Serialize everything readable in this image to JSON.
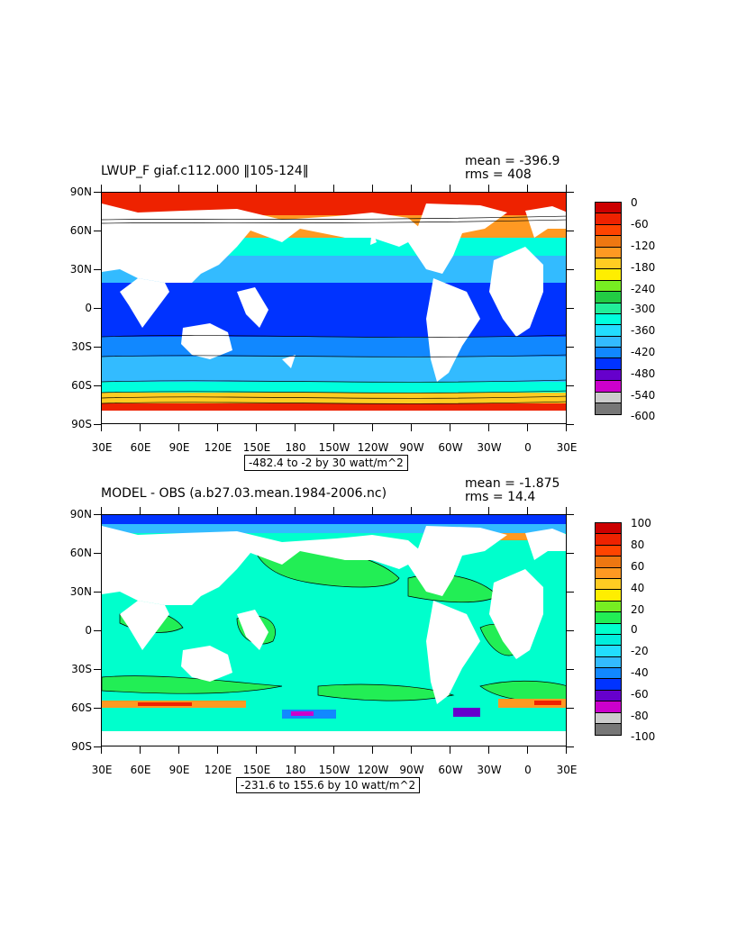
{
  "panels": [
    {
      "title": "LWUP_F giaf.c112.000 ‖105-124‖",
      "mean": "mean = -396.9",
      "rms": "rms = 408",
      "range_label": "-482.4 to -2 by 30 watt/m^2",
      "y_labels": [
        "90N",
        "60N",
        "30N",
        "0",
        "30S",
        "60S",
        "90S"
      ],
      "x_labels": [
        "30E",
        "60E",
        "90E",
        "120E",
        "150E",
        "180",
        "150W",
        "120W",
        "90W",
        "60W",
        "30W",
        "0",
        "30E"
      ],
      "colorbar_labels": [
        "0",
        "-60",
        "-120",
        "-180",
        "-240",
        "-300",
        "-360",
        "-420",
        "-480",
        "-540",
        "-600"
      ],
      "colorbar_colors": [
        "#cc0000",
        "#ee2200",
        "#ff4400",
        "#ee7711",
        "#ff9922",
        "#ffcc22",
        "#ffee00",
        "#77ee22",
        "#22cc44",
        "#22ee99",
        "#00ffdd",
        "#22ddff",
        "#33bbff",
        "#1188ff",
        "#0033ff",
        "#6600cc",
        "#cc00cc",
        "#cccccc",
        "#777777"
      ]
    },
    {
      "title": "MODEL - OBS (a.b27.03.mean.1984-2006.nc)",
      "mean": "mean = -1.875",
      "rms": "rms = 14.4",
      "range_label": "-231.6 to 155.6 by 10 watt/m^2",
      "y_labels": [
        "90N",
        "60N",
        "30N",
        "0",
        "30S",
        "60S",
        "90S"
      ],
      "x_labels": [
        "30E",
        "60E",
        "90E",
        "120E",
        "150E",
        "180",
        "150W",
        "120W",
        "90W",
        "60W",
        "30W",
        "0",
        "30E"
      ],
      "colorbar_labels": [
        "100",
        "80",
        "60",
        "40",
        "20",
        "0",
        "-20",
        "-40",
        "-60",
        "-80",
        "-100"
      ],
      "colorbar_colors": [
        "#cc0000",
        "#ee2200",
        "#ff4400",
        "#ee7711",
        "#ff9922",
        "#ffcc22",
        "#ffee00",
        "#77ee22",
        "#22ee55",
        "#00ffcc",
        "#00eedd",
        "#22ddff",
        "#33bbff",
        "#1188ff",
        "#0033ff",
        "#6600cc",
        "#cc00cc",
        "#cccccc",
        "#777777"
      ]
    }
  ]
}
